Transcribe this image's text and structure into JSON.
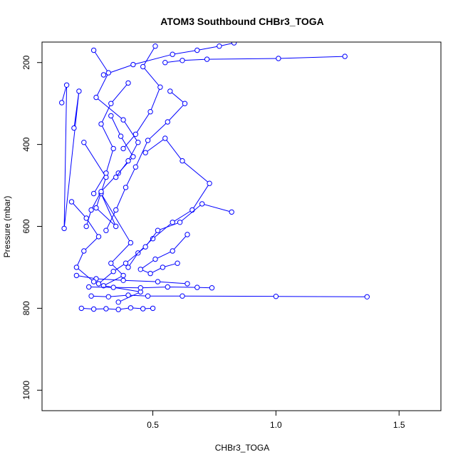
{
  "chart_data": {
    "type": "line",
    "title": "ATOM3 Southbound CHBr3_TOGA",
    "xlabel": "CHBr3_TOGA",
    "ylabel": "Pressure (mbar)",
    "xlim": [
      0.05,
      1.67
    ],
    "ylim": [
      1050,
      150
    ],
    "y_reversed": true,
    "grid": false,
    "legend": "none",
    "x_ticks": [
      {
        "value": 0.5,
        "label": "0.5"
      },
      {
        "value": 1.0,
        "label": "1.0"
      },
      {
        "value": 1.5,
        "label": "1.5"
      }
    ],
    "y_ticks": [
      {
        "value": 200,
        "label": "200"
      },
      {
        "value": 400,
        "label": "400"
      },
      {
        "value": 600,
        "label": "600"
      },
      {
        "value": 800,
        "label": "800"
      },
      {
        "value": 1000,
        "label": "1000"
      }
    ],
    "series_color": "#0000ff",
    "marker": "open-circle",
    "series": [
      {
        "x": [
          1.28,
          1.01,
          0.72,
          0.62,
          0.55
        ],
        "y": [
          185,
          190,
          192,
          195,
          200
        ]
      },
      {
        "x": [
          0.13,
          0.15,
          0.14,
          0.2,
          0.18
        ],
        "y": [
          298,
          255,
          605,
          270,
          360
        ]
      },
      {
        "x": [
          0.22,
          0.31,
          0.27,
          0.35,
          0.29,
          0.41,
          0.33,
          0.38,
          0.3,
          0.45,
          0.36
        ],
        "y": [
          395,
          480,
          555,
          600,
          520,
          640,
          690,
          720,
          745,
          760,
          785
        ]
      },
      {
        "x": [
          0.47,
          0.55,
          0.62,
          0.73,
          0.66,
          0.58,
          0.5,
          0.44,
          0.4
        ],
        "y": [
          420,
          385,
          440,
          495,
          560,
          590,
          630,
          665,
          700
        ]
      },
      {
        "x": [
          0.82,
          0.7,
          0.61,
          0.52,
          0.47,
          0.39,
          0.34,
          0.28
        ],
        "y": [
          565,
          545,
          590,
          610,
          650,
          690,
          710,
          740
        ]
      },
      {
        "x": [
          1.37,
          1.0,
          0.62,
          0.48,
          0.4,
          0.32,
          0.25
        ],
        "y": [
          772,
          771,
          770,
          770,
          768,
          772,
          770
        ]
      },
      {
        "x": [
          0.21,
          0.26,
          0.31,
          0.36,
          0.41,
          0.46,
          0.5
        ],
        "y": [
          800,
          802,
          801,
          803,
          799,
          801,
          800
        ]
      },
      {
        "x": [
          0.24,
          0.34,
          0.45,
          0.56,
          0.68,
          0.74
        ],
        "y": [
          748,
          749,
          750,
          748,
          749,
          750
        ]
      },
      {
        "x": [
          0.19,
          0.27,
          0.38,
          0.52,
          0.64
        ],
        "y": [
          720,
          728,
          732,
          735,
          740
        ]
      },
      {
        "x": [
          0.3,
          0.42,
          0.58,
          0.68,
          0.77,
          0.83
        ],
        "y": [
          230,
          205,
          180,
          170,
          160,
          152
        ]
      },
      {
        "x": [
          0.17,
          0.23,
          0.28,
          0.22,
          0.19,
          0.26
        ],
        "y": [
          540,
          580,
          625,
          660,
          700,
          735
        ]
      },
      {
        "x": [
          0.57,
          0.63,
          0.56,
          0.48,
          0.43,
          0.39,
          0.35,
          0.31
        ],
        "y": [
          270,
          300,
          345,
          390,
          455,
          505,
          560,
          610
        ]
      },
      {
        "x": [
          0.33,
          0.37,
          0.42,
          0.36,
          0.29,
          0.25,
          0.23
        ],
        "y": [
          330,
          380,
          430,
          470,
          515,
          560,
          600
        ]
      },
      {
        "x": [
          0.64,
          0.58,
          0.51,
          0.45,
          0.49,
          0.54,
          0.6
        ],
        "y": [
          620,
          660,
          680,
          705,
          715,
          700,
          690
        ]
      },
      {
        "x": [
          0.26,
          0.32,
          0.27,
          0.38,
          0.44,
          0.4,
          0.35
        ],
        "y": [
          170,
          225,
          285,
          340,
          395,
          440,
          480
        ]
      },
      {
        "x": [
          0.51,
          0.46,
          0.53,
          0.49,
          0.43,
          0.38
        ],
        "y": [
          160,
          210,
          260,
          320,
          375,
          410
        ]
      },
      {
        "x": [
          0.4,
          0.33,
          0.29,
          0.34,
          0.31,
          0.26
        ],
        "y": [
          250,
          300,
          350,
          410,
          470,
          520
        ]
      }
    ]
  }
}
